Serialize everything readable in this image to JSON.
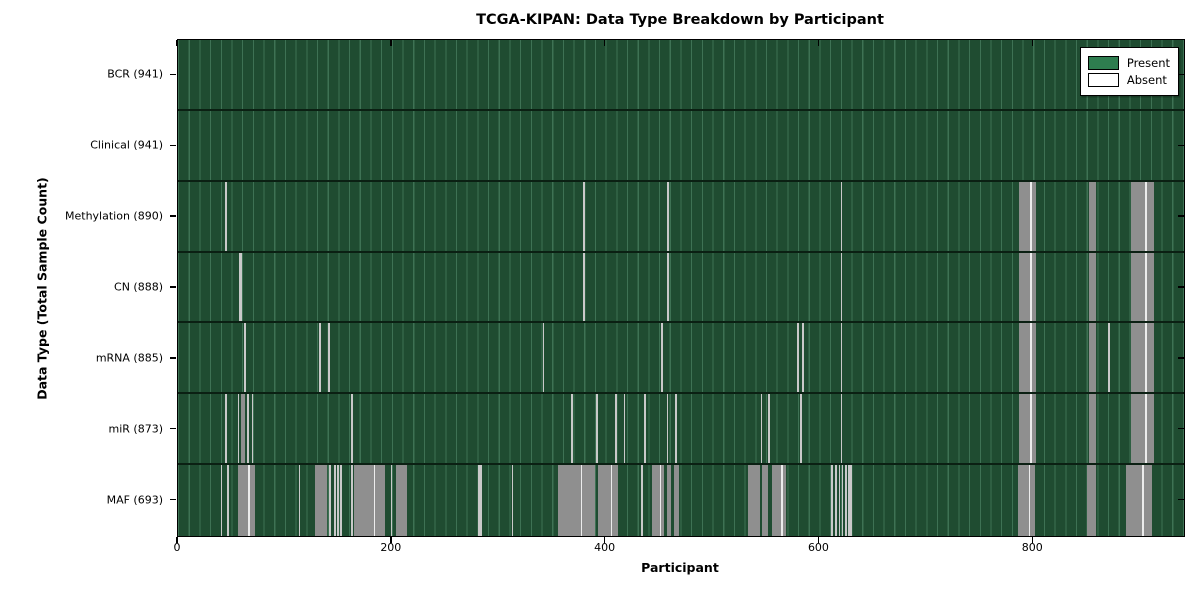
{
  "chart_data": {
    "type": "heatmap",
    "title": "TCGA-KIPAN: Data Type Breakdown by Participant",
    "xlabel": "Participant",
    "ylabel": "Data Type (Total Sample Count)",
    "x_ticks": [
      0,
      200,
      400,
      600,
      800
    ],
    "x_max": 941,
    "grid": "vertical-minor-lines-every-10-participants",
    "legend_position": "upper right",
    "colors": {
      "present_fill": "#2e7d4f",
      "present_dense_fill": "#1f4c31",
      "minor_line": "#3e7254",
      "absent_wide": "#8f8f8f",
      "absent_narrow": "#c9c9c9",
      "row_separator": "#0b2013"
    },
    "legend": [
      {
        "label": "Present",
        "color": "#2e7d4f"
      },
      {
        "label": "Absent",
        "color": "#ffffff"
      }
    ],
    "rows": [
      {
        "label": "BCR (941)",
        "data_type": "BCR",
        "present_count": 941,
        "absent_ranges": []
      },
      {
        "label": "Clinical (941)",
        "data_type": "Clinical",
        "present_count": 941,
        "absent_ranges": []
      },
      {
        "label": "Methylation (890)",
        "data_type": "Methylation",
        "present_count": 890,
        "absent_ranges": [
          [
            44,
            46
          ],
          [
            379,
            381
          ],
          [
            457,
            459
          ],
          [
            620,
            621
          ],
          [
            787,
            803
          ],
          [
            852,
            859
          ],
          [
            891,
            913
          ]
        ]
      },
      {
        "label": "CN (888)",
        "data_type": "CN",
        "present_count": 888,
        "absent_ranges": [
          [
            57,
            60
          ],
          [
            379,
            381
          ],
          [
            457,
            459
          ],
          [
            620,
            621
          ],
          [
            787,
            803
          ],
          [
            852,
            859
          ],
          [
            891,
            913
          ]
        ]
      },
      {
        "label": "mRNA (885)",
        "data_type": "mRNA",
        "present_count": 885,
        "absent_ranges": [
          [
            62,
            64
          ],
          [
            132,
            134
          ],
          [
            140,
            142
          ],
          [
            341,
            342
          ],
          [
            452,
            454
          ],
          [
            579,
            581
          ],
          [
            584,
            586
          ],
          [
            620,
            621
          ],
          [
            787,
            803
          ],
          [
            852,
            859
          ],
          [
            870,
            871
          ],
          [
            891,
            913
          ]
        ]
      },
      {
        "label": "miR (873)",
        "data_type": "miR",
        "present_count": 873,
        "absent_ranges": [
          [
            44,
            45
          ],
          [
            56,
            57
          ],
          [
            59,
            63
          ],
          [
            65,
            66
          ],
          [
            69,
            70
          ],
          [
            162,
            163
          ],
          [
            368,
            369
          ],
          [
            391,
            392
          ],
          [
            409,
            410
          ],
          [
            417,
            418
          ],
          [
            436,
            437
          ],
          [
            457,
            458
          ],
          [
            465,
            466
          ],
          [
            545,
            546
          ],
          [
            552,
            553
          ],
          [
            582,
            583
          ],
          [
            620,
            621
          ],
          [
            787,
            803
          ],
          [
            852,
            859
          ],
          [
            891,
            913
          ]
        ]
      },
      {
        "label": "MAF (693)",
        "data_type": "MAF",
        "present_count": 693,
        "absent_ranges": [
          [
            40,
            41
          ],
          [
            46,
            47
          ],
          [
            56,
            72
          ],
          [
            113,
            114
          ],
          [
            128,
            139
          ],
          [
            141,
            143
          ],
          [
            146,
            147
          ],
          [
            149,
            150
          ],
          [
            152,
            153
          ],
          [
            162,
            163
          ],
          [
            165,
            194
          ],
          [
            199,
            200
          ],
          [
            204,
            214
          ],
          [
            281,
            284
          ],
          [
            312,
            313
          ],
          [
            355,
            390
          ],
          [
            393,
            412
          ],
          [
            433,
            434
          ],
          [
            443,
            455
          ],
          [
            457,
            461
          ],
          [
            464,
            469
          ],
          [
            533,
            544
          ],
          [
            546,
            552
          ],
          [
            556,
            569
          ],
          [
            611,
            612
          ],
          [
            615,
            616
          ],
          [
            618,
            619
          ],
          [
            621,
            622
          ],
          [
            624,
            625
          ],
          [
            627,
            630
          ],
          [
            786,
            802
          ],
          [
            850,
            859
          ],
          [
            887,
            911
          ]
        ]
      }
    ]
  }
}
